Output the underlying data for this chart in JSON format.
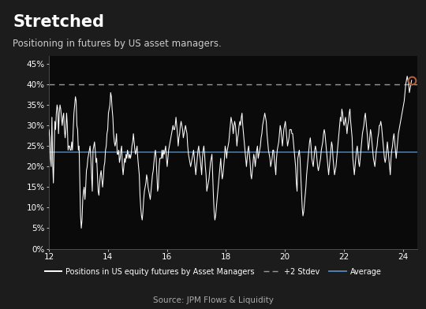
{
  "title": "Stretched",
  "subtitle": "Positioning in futures by US asset managers.",
  "source": "Source: JPM Flows & Liquidity",
  "bg_color": "#1c1c1c",
  "plot_bg_color": "#0a0a0a",
  "text_color": "#ffffff",
  "subtitle_color": "#cccccc",
  "source_color": "#aaaaaa",
  "line_color": "#ffffff",
  "avg_line_color": "#5080b0",
  "stdev_line_color": "#999999",
  "circle_color": "#b06040",
  "avg_value": 0.235,
  "stdev2_value": 0.4,
  "xlim": [
    12,
    24.5
  ],
  "ylim": [
    0,
    0.47
  ],
  "yticks": [
    0.0,
    0.05,
    0.1,
    0.15,
    0.2,
    0.25,
    0.3,
    0.35,
    0.4,
    0.45
  ],
  "xticks": [
    12,
    14,
    16,
    18,
    20,
    22,
    24
  ],
  "legend_labels": [
    "Positions in US equity futures by Asset Managers",
    "+2 Stdev",
    "Average"
  ],
  "title_fontsize": 15,
  "subtitle_fontsize": 8.5,
  "tick_fontsize": 7.5,
  "legend_fontsize": 7,
  "source_fontsize": 7.5,
  "y_data": [
    0.29,
    0.27,
    0.22,
    0.2,
    0.32,
    0.21,
    0.16,
    0.24,
    0.31,
    0.29,
    0.33,
    0.35,
    0.34,
    0.28,
    0.33,
    0.35,
    0.34,
    0.32,
    0.3,
    0.32,
    0.33,
    0.29,
    0.27,
    0.29,
    0.33,
    0.3,
    0.24,
    0.25,
    0.25,
    0.24,
    0.24,
    0.26,
    0.24,
    0.29,
    0.33,
    0.35,
    0.37,
    0.36,
    0.3,
    0.29,
    0.24,
    0.25,
    0.16,
    0.08,
    0.05,
    0.07,
    0.12,
    0.14,
    0.15,
    0.12,
    0.15,
    0.19,
    0.2,
    0.22,
    0.23,
    0.24,
    0.25,
    0.22,
    0.18,
    0.14,
    0.24,
    0.25,
    0.26,
    0.24,
    0.21,
    0.22,
    0.18,
    0.14,
    0.13,
    0.16,
    0.18,
    0.19,
    0.17,
    0.15,
    0.17,
    0.2,
    0.21,
    0.24,
    0.25,
    0.28,
    0.29,
    0.33,
    0.34,
    0.35,
    0.38,
    0.37,
    0.34,
    0.32,
    0.28,
    0.26,
    0.25,
    0.26,
    0.28,
    0.23,
    0.23,
    0.24,
    0.21,
    0.22,
    0.24,
    0.25,
    0.2,
    0.18,
    0.2,
    0.22,
    0.21,
    0.23,
    0.22,
    0.24,
    0.23,
    0.22,
    0.23,
    0.22,
    0.23,
    0.25,
    0.26,
    0.28,
    0.26,
    0.24,
    0.23,
    0.24,
    0.25,
    0.22,
    0.2,
    0.18,
    0.13,
    0.1,
    0.08,
    0.07,
    0.09,
    0.12,
    0.14,
    0.15,
    0.16,
    0.18,
    0.17,
    0.15,
    0.14,
    0.13,
    0.12,
    0.14,
    0.16,
    0.18,
    0.19,
    0.21,
    0.23,
    0.24,
    0.22,
    0.18,
    0.14,
    0.15,
    0.2,
    0.22,
    0.22,
    0.22,
    0.24,
    0.22,
    0.24,
    0.23,
    0.24,
    0.25,
    0.22,
    0.2,
    0.22,
    0.24,
    0.25,
    0.26,
    0.27,
    0.28,
    0.29,
    0.3,
    0.29,
    0.29,
    0.3,
    0.32,
    0.3,
    0.28,
    0.25,
    0.27,
    0.28,
    0.3,
    0.31,
    0.3,
    0.29,
    0.27,
    0.28,
    0.29,
    0.3,
    0.29,
    0.28,
    0.25,
    0.23,
    0.22,
    0.21,
    0.2,
    0.21,
    0.22,
    0.23,
    0.24,
    0.22,
    0.2,
    0.18,
    0.2,
    0.22,
    0.24,
    0.25,
    0.23,
    0.22,
    0.2,
    0.18,
    0.22,
    0.24,
    0.25,
    0.23,
    0.2,
    0.18,
    0.14,
    0.15,
    0.16,
    0.17,
    0.19,
    0.21,
    0.22,
    0.23,
    0.18,
    0.13,
    0.09,
    0.07,
    0.08,
    0.1,
    0.12,
    0.14,
    0.16,
    0.18,
    0.2,
    0.22,
    0.19,
    0.17,
    0.18,
    0.2,
    0.22,
    0.25,
    0.24,
    0.22,
    0.24,
    0.25,
    0.26,
    0.28,
    0.3,
    0.32,
    0.31,
    0.3,
    0.28,
    0.3,
    0.31,
    0.3,
    0.28,
    0.25,
    0.27,
    0.28,
    0.3,
    0.31,
    0.3,
    0.32,
    0.33,
    0.3,
    0.28,
    0.26,
    0.24,
    0.22,
    0.2,
    0.22,
    0.24,
    0.25,
    0.23,
    0.21,
    0.18,
    0.17,
    0.19,
    0.21,
    0.23,
    0.22,
    0.2,
    0.22,
    0.24,
    0.25,
    0.22,
    0.23,
    0.24,
    0.25,
    0.27,
    0.28,
    0.3,
    0.31,
    0.32,
    0.33,
    0.32,
    0.31,
    0.28,
    0.26,
    0.24,
    0.23,
    0.22,
    0.2,
    0.21,
    0.22,
    0.24,
    0.24,
    0.22,
    0.2,
    0.18,
    0.22,
    0.24,
    0.25,
    0.26,
    0.28,
    0.3,
    0.29,
    0.27,
    0.25,
    0.27,
    0.29,
    0.3,
    0.31,
    0.29,
    0.27,
    0.25,
    0.26,
    0.27,
    0.29,
    0.29,
    0.29,
    0.28,
    0.28,
    0.26,
    0.24,
    0.22,
    0.2,
    0.16,
    0.14,
    0.22,
    0.23,
    0.24,
    0.22,
    0.18,
    0.14,
    0.1,
    0.08,
    0.09,
    0.11,
    0.13,
    0.15,
    0.18,
    0.2,
    0.22,
    0.24,
    0.26,
    0.27,
    0.25,
    0.22,
    0.21,
    0.2,
    0.22,
    0.24,
    0.25,
    0.24,
    0.22,
    0.2,
    0.19,
    0.2,
    0.21,
    0.22,
    0.24,
    0.25,
    0.26,
    0.28,
    0.29,
    0.28,
    0.26,
    0.24,
    0.22,
    0.2,
    0.18,
    0.2,
    0.22,
    0.24,
    0.26,
    0.25,
    0.22,
    0.2,
    0.18,
    0.19,
    0.2,
    0.22,
    0.24,
    0.26,
    0.28,
    0.3,
    0.32,
    0.31,
    0.34,
    0.33,
    0.31,
    0.3,
    0.31,
    0.32,
    0.3,
    0.28,
    0.3,
    0.31,
    0.33,
    0.34,
    0.31,
    0.29,
    0.27,
    0.22,
    0.2,
    0.18,
    0.2,
    0.22,
    0.24,
    0.25,
    0.23,
    0.21,
    0.2,
    0.22,
    0.24,
    0.26,
    0.28,
    0.29,
    0.3,
    0.32,
    0.33,
    0.31,
    0.29,
    0.27,
    0.24,
    0.25,
    0.27,
    0.29,
    0.28,
    0.26,
    0.24,
    0.22,
    0.21,
    0.2,
    0.22,
    0.24,
    0.25,
    0.27,
    0.28,
    0.3,
    0.3,
    0.31,
    0.3,
    0.28,
    0.26,
    0.24,
    0.22,
    0.21,
    0.22,
    0.24,
    0.26,
    0.24,
    0.22,
    0.2,
    0.18,
    0.22,
    0.24,
    0.25,
    0.27,
    0.28,
    0.26,
    0.24,
    0.22,
    0.24,
    0.26,
    0.28,
    0.29,
    0.3,
    0.31,
    0.32,
    0.33,
    0.34,
    0.35,
    0.36,
    0.38,
    0.4,
    0.41,
    0.42,
    0.41,
    0.4,
    0.38,
    0.39,
    0.4,
    0.41
  ]
}
